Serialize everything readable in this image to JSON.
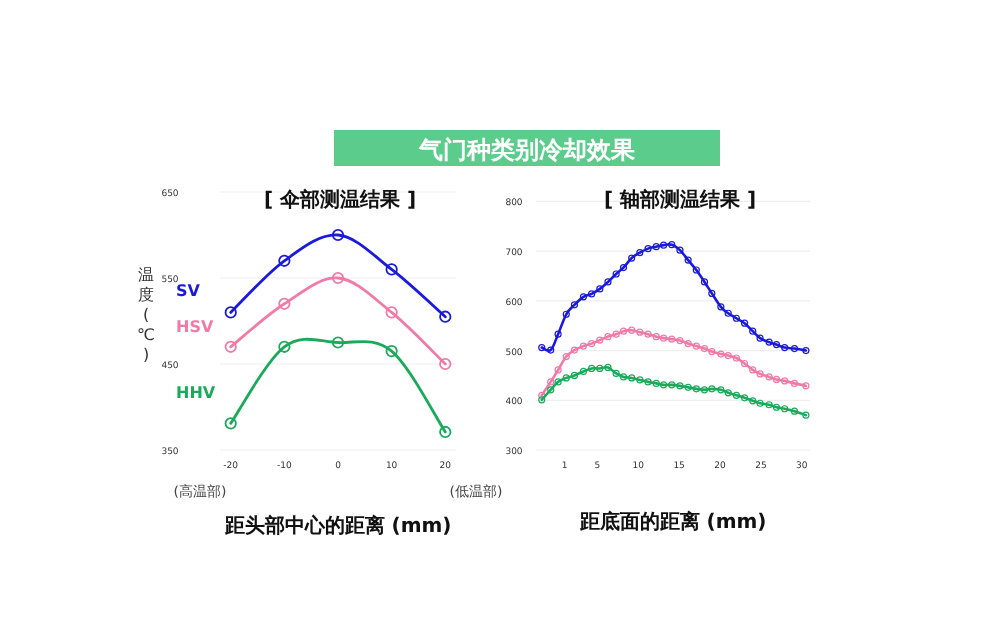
{
  "chart_data": [
    {
      "type": "other",
      "title": "气门种类别冷却效果"
    },
    {
      "type": "line",
      "title": "[ 伞部测温结果 ]",
      "xlabel": "距头部中心的距离 (mm)",
      "ylabel": "温度(℃)",
      "annotations": [
        "(高温部)",
        "(低温部)"
      ],
      "x": [
        -20,
        -10,
        0,
        10,
        20
      ],
      "xlim": [
        -22,
        22
      ],
      "xticks": [
        -20,
        -10,
        0,
        10,
        20
      ],
      "ylim": [
        350,
        650
      ],
      "yticks": [
        350,
        450,
        550,
        650
      ],
      "grid": "y",
      "marker": "circle",
      "line_style": "solid",
      "series": [
        {
          "name": "SV",
          "color": "#1a1adc",
          "values": [
            510,
            570,
            600,
            560,
            505
          ]
        },
        {
          "name": "HSV",
          "color": "#f07aa8",
          "values": [
            470,
            520,
            550,
            510,
            450
          ]
        },
        {
          "name": "HHV",
          "color": "#1aaa5a",
          "values": [
            381,
            470,
            475,
            465,
            371
          ]
        }
      ]
    },
    {
      "type": "line",
      "title": "[ 轴部测温结果 ]",
      "xlabel": "距底面的距离 (mm)",
      "x": [
        -1.8,
        -0.7,
        0.2,
        1.2,
        2.2,
        3.3,
        4.3,
        5.3,
        6.3,
        7.3,
        8.2,
        9.2,
        10.2,
        11.2,
        12.2,
        13.1,
        14.1,
        15.1,
        16.1,
        17.1,
        18.1,
        19.0,
        20.1,
        21.0,
        22.0,
        23.0,
        24.0,
        24.9,
        26.0,
        26.9,
        27.9,
        29.1,
        30.5
      ],
      "xlim": [
        -2.5,
        31
      ],
      "xticks": [
        1,
        5,
        10,
        15,
        20,
        25,
        30
      ],
      "ylim": [
        300,
        800
      ],
      "yticks": [
        300,
        400,
        500,
        600,
        700,
        800
      ],
      "grid": "y",
      "marker": "circle",
      "line_style": "solid",
      "series": [
        {
          "color": "#1a1adc",
          "values": [
            506,
            501,
            533,
            573,
            592,
            608,
            614,
            624,
            638,
            654,
            667,
            686,
            697,
            705,
            709,
            712,
            713,
            702,
            682,
            662,
            638,
            615,
            588,
            575,
            565,
            555,
            539,
            525,
            517,
            512,
            506,
            504,
            500
          ]
        },
        {
          "color": "#f07aa8",
          "values": [
            410,
            437,
            461,
            488,
            501,
            509,
            514,
            521,
            528,
            533,
            539,
            541,
            537,
            533,
            528,
            525,
            523,
            520,
            514,
            509,
            504,
            498,
            493,
            490,
            485,
            474,
            461,
            453,
            447,
            442,
            439,
            434,
            429
          ]
        },
        {
          "color": "#1aaa5a",
          "values": [
            401,
            421,
            437,
            445,
            450,
            458,
            464,
            464,
            466,
            454,
            447,
            445,
            441,
            437,
            434,
            431,
            431,
            429,
            426,
            423,
            421,
            423,
            421,
            415,
            410,
            405,
            399,
            394,
            391,
            386,
            383,
            378,
            370
          ]
        }
      ]
    }
  ]
}
